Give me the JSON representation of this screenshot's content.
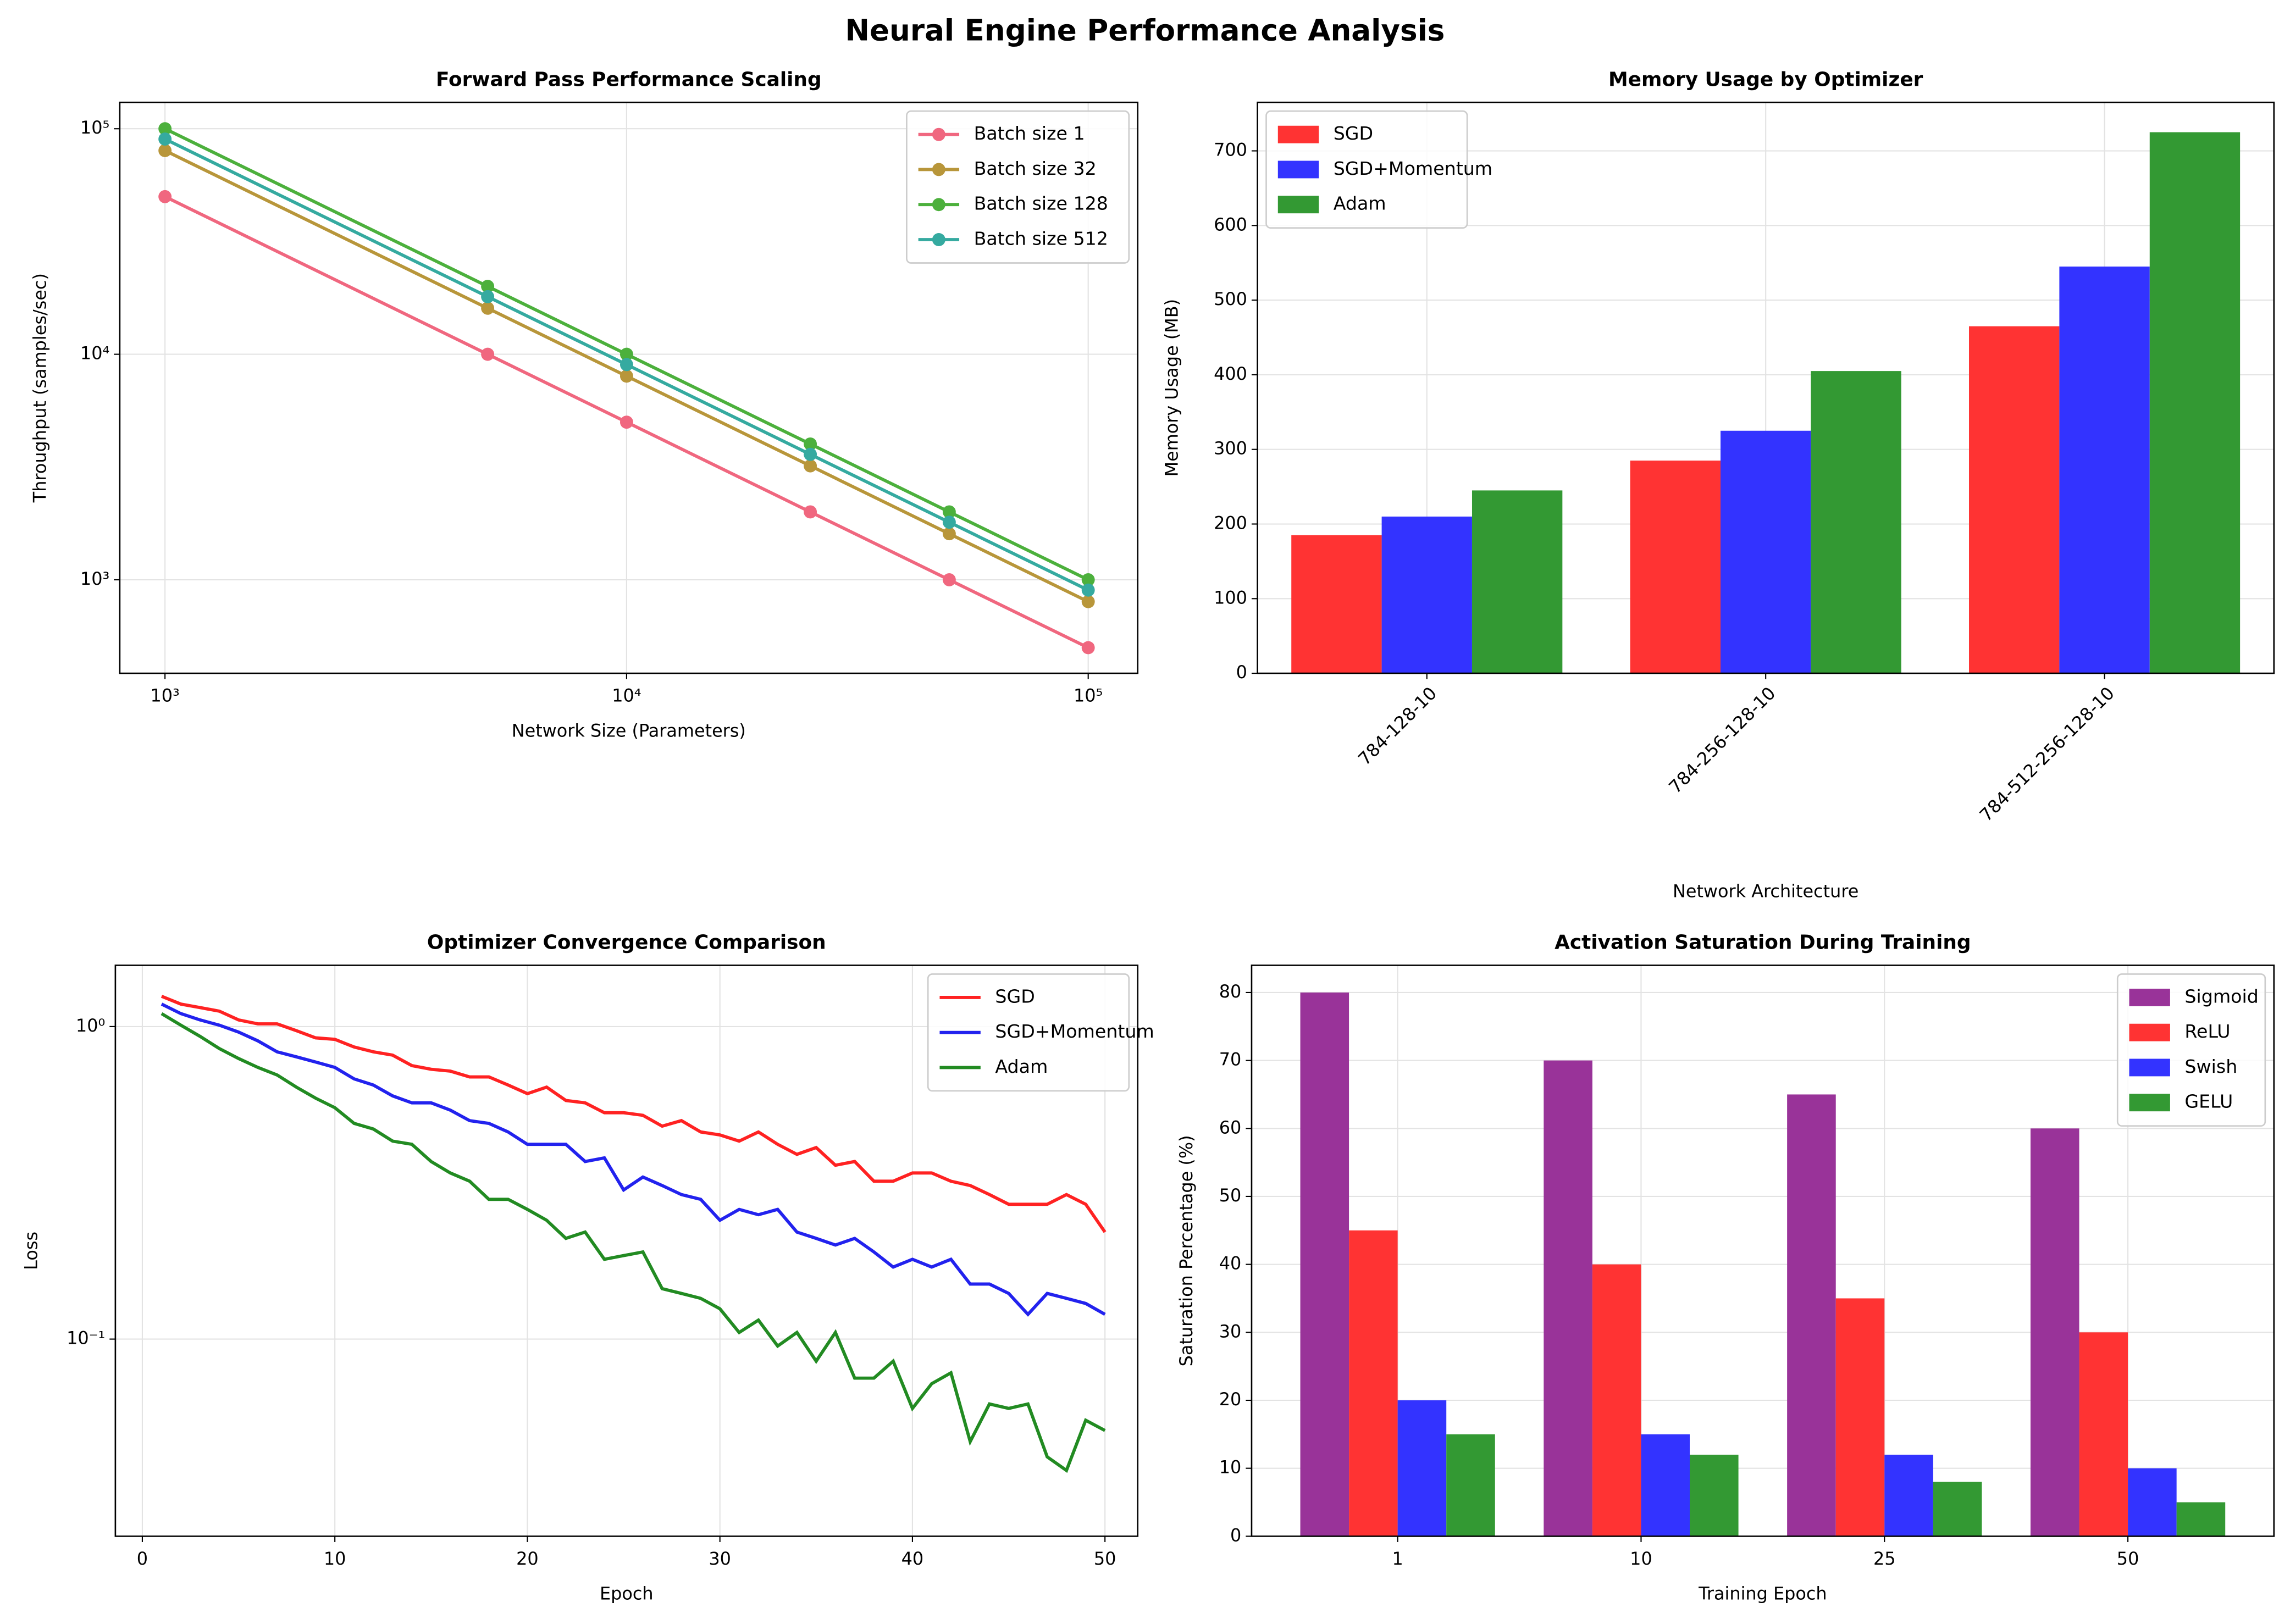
{
  "title": "Neural Engine Performance Analysis",
  "chart_data": [
    {
      "type": "line",
      "title": "Forward Pass Performance Scaling",
      "xlabel": "Network Size (Parameters)",
      "ylabel": "Throughput (samples/sec)",
      "xscale": "log",
      "yscale": "log",
      "markers": true,
      "grid": true,
      "legend": "upper right",
      "x": [
        1000,
        5000,
        10000,
        25000,
        50000,
        100000
      ],
      "series": [
        {
          "name": "Batch size 1",
          "color": "#f0677f",
          "values": [
            50000,
            10000,
            5000,
            2000,
            1000,
            500
          ]
        },
        {
          "name": "Batch size 32",
          "color": "#b8963a",
          "values": [
            80000,
            16000,
            8000,
            3200,
            1600,
            800
          ]
        },
        {
          "name": "Batch size 128",
          "color": "#4cb03c",
          "values": [
            100000,
            20000,
            10000,
            4000,
            2000,
            1000
          ]
        },
        {
          "name": "Batch size 512",
          "color": "#35aaa0",
          "values": [
            90000,
            18000,
            9000,
            3600,
            1800,
            900
          ]
        }
      ],
      "xlim": [
        798,
        128000
      ],
      "ylim": [
        385,
        130900
      ],
      "xticks": [
        {
          "value": 1000,
          "label": "10³"
        },
        {
          "value": 10000,
          "label": "10⁴"
        },
        {
          "value": 100000,
          "label": "10⁵"
        }
      ],
      "yticks": [
        {
          "value": 1000,
          "label": "10³"
        },
        {
          "value": 10000,
          "label": "10⁴"
        },
        {
          "value": 100000,
          "label": "10⁵"
        }
      ]
    },
    {
      "type": "bar",
      "title": "Memory Usage by Optimizer",
      "xlabel": "Network Architecture",
      "ylabel": "Memory Usage (MB)",
      "grid": true,
      "legend": "upper left",
      "xtick_rotation": 45,
      "categories": [
        "784-128-10",
        "784-256-128-10",
        "784-512-256-128-10"
      ],
      "series": [
        {
          "name": "SGD",
          "color": "#ff3333",
          "values": [
            185,
            285,
            465
          ]
        },
        {
          "name": "SGD+Momentum",
          "color": "#3333ff",
          "values": [
            210,
            325,
            545
          ]
        },
        {
          "name": "Adam",
          "color": "#339933",
          "values": [
            245,
            405,
            725
          ]
        }
      ],
      "ylim": [
        0,
        765
      ],
      "yticks": [
        0,
        100,
        200,
        300,
        400,
        500,
        600,
        700
      ]
    },
    {
      "type": "line",
      "title": "Optimizer Convergence Comparison",
      "xlabel": "Epoch",
      "ylabel": "Loss",
      "yscale": "log",
      "markers": false,
      "grid": true,
      "legend": "upper right",
      "x": [
        1,
        2,
        3,
        4,
        5,
        6,
        7,
        8,
        9,
        10,
        11,
        12,
        13,
        14,
        15,
        16,
        17,
        18,
        19,
        20,
        21,
        22,
        23,
        24,
        25,
        26,
        27,
        28,
        29,
        30,
        31,
        32,
        33,
        34,
        35,
        36,
        37,
        38,
        39,
        40,
        41,
        42,
        43,
        44,
        45,
        46,
        47,
        48,
        49,
        50
      ],
      "series": [
        {
          "name": "SGD",
          "color": "#ff2222",
          "values": [
            1.25,
            1.18,
            1.15,
            1.12,
            1.05,
            1.02,
            1.02,
            0.97,
            0.92,
            0.91,
            0.86,
            0.83,
            0.81,
            0.75,
            0.73,
            0.72,
            0.69,
            0.69,
            0.65,
            0.61,
            0.64,
            0.58,
            0.57,
            0.53,
            0.53,
            0.52,
            0.48,
            0.5,
            0.46,
            0.45,
            0.43,
            0.46,
            0.42,
            0.39,
            0.41,
            0.36,
            0.37,
            0.32,
            0.32,
            0.34,
            0.34,
            0.32,
            0.31,
            0.29,
            0.27,
            0.27,
            0.27,
            0.29,
            0.27,
            0.22
          ]
        },
        {
          "name": "SGD+Momentum",
          "color": "#2222ee",
          "values": [
            1.18,
            1.1,
            1.05,
            1.01,
            0.96,
            0.9,
            0.83,
            0.8,
            0.77,
            0.74,
            0.68,
            0.65,
            0.6,
            0.57,
            0.57,
            0.54,
            0.5,
            0.49,
            0.46,
            0.42,
            0.42,
            0.42,
            0.37,
            0.38,
            0.3,
            0.33,
            0.31,
            0.29,
            0.28,
            0.24,
            0.26,
            0.25,
            0.26,
            0.22,
            0.21,
            0.2,
            0.21,
            0.19,
            0.17,
            0.18,
            0.17,
            0.18,
            0.15,
            0.15,
            0.14,
            0.12,
            0.14,
            0.135,
            0.13,
            0.12
          ]
        },
        {
          "name": "Adam",
          "color": "#228b22",
          "values": [
            1.1,
            1.01,
            0.93,
            0.85,
            0.79,
            0.74,
            0.7,
            0.64,
            0.59,
            0.55,
            0.49,
            0.47,
            0.43,
            0.42,
            0.37,
            0.34,
            0.32,
            0.28,
            0.28,
            0.26,
            0.24,
            0.21,
            0.22,
            0.18,
            0.185,
            0.19,
            0.145,
            0.14,
            0.135,
            0.125,
            0.105,
            0.115,
            0.095,
            0.105,
            0.085,
            0.105,
            0.075,
            0.075,
            0.085,
            0.06,
            0.072,
            0.078,
            0.047,
            0.062,
            0.06,
            0.062,
            0.042,
            0.038,
            0.055,
            0.051
          ]
        }
      ],
      "xlim": [
        -1.4,
        51.7
      ],
      "ylim": [
        0.0234,
        1.57
      ],
      "xticks": [
        0,
        10,
        20,
        30,
        40,
        50
      ],
      "yticks": [
        {
          "value": 1,
          "label": "10⁰"
        },
        {
          "value": 0.1,
          "label": "10⁻¹"
        }
      ]
    },
    {
      "type": "bar",
      "title": "Activation Saturation During Training",
      "xlabel": "Training Epoch",
      "ylabel": "Saturation Percentage (%)",
      "grid": true,
      "legend": "upper right",
      "categories": [
        "1",
        "10",
        "25",
        "50"
      ],
      "series": [
        {
          "name": "Sigmoid",
          "color": "#993399",
          "values": [
            80,
            70,
            65,
            60
          ]
        },
        {
          "name": "ReLU",
          "color": "#ff3333",
          "values": [
            45,
            40,
            35,
            30
          ]
        },
        {
          "name": "Swish",
          "color": "#3333ff",
          "values": [
            20,
            15,
            12,
            10
          ]
        },
        {
          "name": "GELU",
          "color": "#339933",
          "values": [
            15,
            12,
            8,
            5
          ]
        }
      ],
      "ylim": [
        0,
        84
      ],
      "yticks": [
        0,
        10,
        20,
        30,
        40,
        50,
        60,
        70,
        80
      ]
    }
  ]
}
